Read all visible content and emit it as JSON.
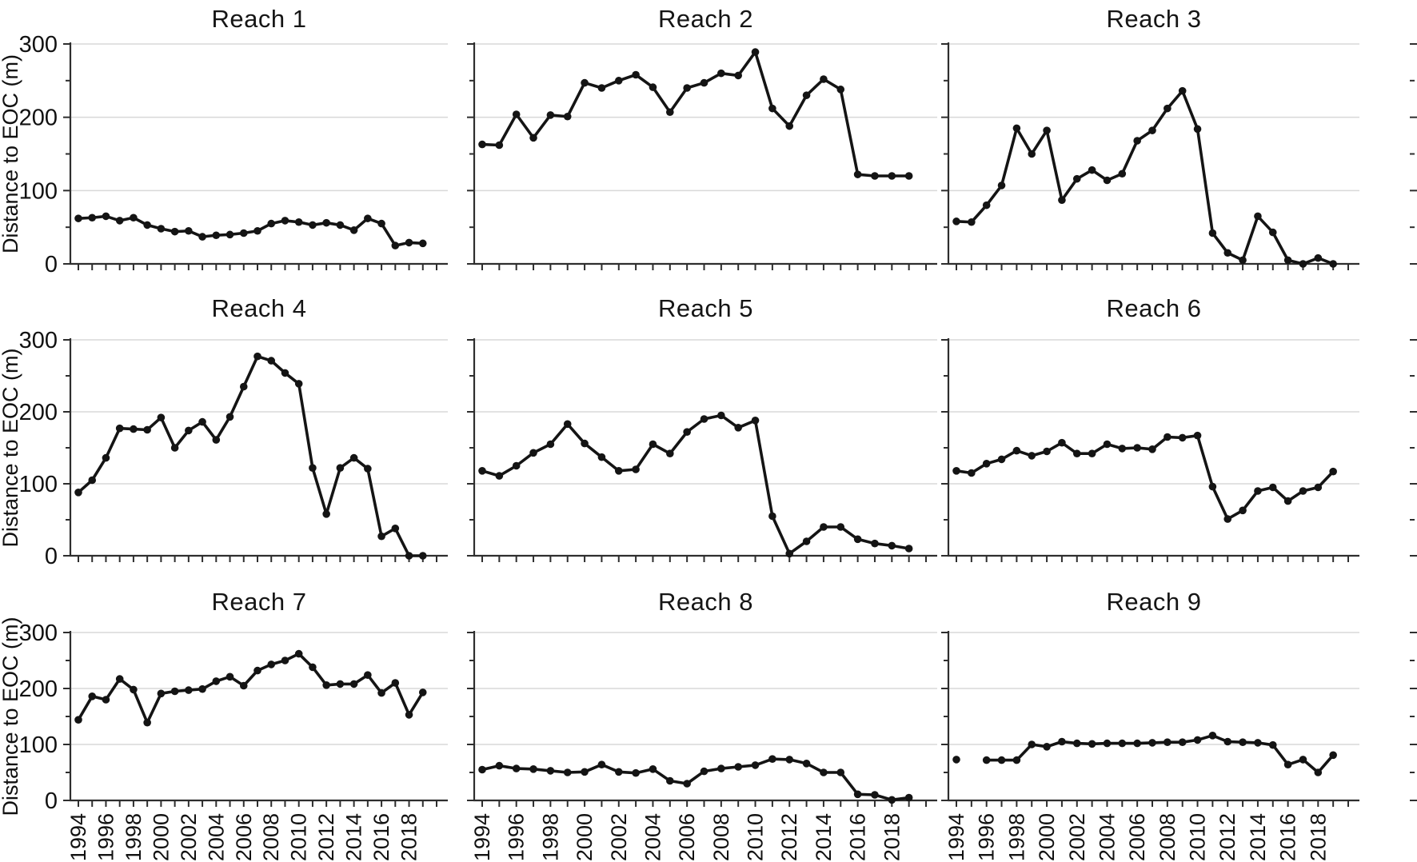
{
  "figure": {
    "ylabel": "Distance to EOC (m)",
    "background": "#ffffff",
    "line_color": "#141414",
    "marker_color": "#141414",
    "grid_color": "#d8d8d8",
    "axis_color": "#2e2e2e",
    "text_color": "#111111"
  },
  "axes": {
    "ylim": [
      0,
      300
    ],
    "yticks": [
      0,
      100,
      200,
      300
    ],
    "ytick_minor_step": 50,
    "xtick_years": [
      1994,
      1996,
      1998,
      2000,
      2002,
      2004,
      2006,
      2008,
      2010,
      2012,
      2014,
      2016,
      2018
    ],
    "x_axis_years": [
      1994,
      2020
    ],
    "grid": "horizontal-only",
    "legend": "none"
  },
  "years": [
    1994,
    1995,
    1996,
    1997,
    1998,
    1999,
    2000,
    2001,
    2002,
    2003,
    2004,
    2005,
    2006,
    2007,
    2008,
    2009,
    2010,
    2011,
    2012,
    2013,
    2014,
    2015,
    2016,
    2017,
    2018,
    2019
  ],
  "chart_data": [
    {
      "type": "line",
      "title": "Reach 1",
      "ylabel": "Distance to EOC (m)",
      "ylim": [
        0,
        300
      ],
      "values": [
        62,
        63,
        65,
        59,
        63,
        53,
        48,
        44,
        45,
        37,
        39,
        40,
        42,
        45,
        55,
        59,
        57,
        53,
        56,
        53,
        46,
        62,
        55,
        25,
        29,
        28
      ]
    },
    {
      "type": "line",
      "title": "Reach 2",
      "ylabel": "Distance to EOC (m)",
      "ylim": [
        0,
        300
      ],
      "values": [
        163,
        162,
        204,
        172,
        203,
        201,
        247,
        240,
        250,
        258,
        241,
        207,
        240,
        247,
        260,
        257,
        289,
        212,
        188,
        230,
        252,
        238,
        122,
        120,
        120,
        120
      ]
    },
    {
      "type": "line",
      "title": "Reach 3",
      "ylabel": "Distance to EOC (m)",
      "ylim": [
        0,
        300
      ],
      "values": [
        58,
        57,
        80,
        107,
        185,
        150,
        182,
        87,
        116,
        128,
        114,
        123,
        168,
        182,
        212,
        236,
        184,
        42,
        15,
        5,
        65,
        43,
        5,
        0,
        8,
        0
      ]
    },
    {
      "type": "line",
      "title": "Reach 4",
      "ylabel": "Distance to EOC (m)",
      "ylim": [
        0,
        300
      ],
      "values": [
        88,
        105,
        136,
        177,
        176,
        175,
        192,
        150,
        174,
        186,
        161,
        193,
        235,
        277,
        271,
        254,
        239,
        122,
        58,
        122,
        136,
        121,
        27,
        38,
        0,
        0
      ]
    },
    {
      "type": "line",
      "title": "Reach 5",
      "ylabel": "Distance to EOC (m)",
      "ylim": [
        0,
        300
      ],
      "values": [
        118,
        111,
        125,
        143,
        155,
        183,
        156,
        137,
        118,
        120,
        155,
        142,
        172,
        190,
        195,
        178,
        188,
        55,
        3,
        20,
        40,
        40,
        23,
        17,
        14,
        10
      ]
    },
    {
      "type": "line",
      "title": "Reach 6",
      "ylabel": "Distance to EOC (m)",
      "ylim": [
        0,
        300
      ],
      "values": [
        118,
        115,
        128,
        134,
        146,
        139,
        145,
        157,
        142,
        142,
        155,
        149,
        150,
        148,
        165,
        164,
        167,
        96,
        51,
        63,
        90,
        95,
        76,
        90,
        95,
        117
      ]
    },
    {
      "type": "line",
      "title": "Reach 7",
      "ylabel": "Distance to EOC (m)",
      "ylim": [
        0,
        300
      ],
      "values": [
        144,
        186,
        180,
        217,
        198,
        139,
        191,
        195,
        197,
        199,
        213,
        221,
        205,
        232,
        243,
        250,
        262,
        238,
        206,
        208,
        208,
        224,
        192,
        210,
        153,
        193
      ]
    },
    {
      "type": "line",
      "title": "Reach 8",
      "ylabel": "Distance to EOC (m)",
      "ylim": [
        0,
        300
      ],
      "values": [
        55,
        62,
        57,
        56,
        53,
        50,
        51,
        64,
        51,
        49,
        56,
        35,
        30,
        52,
        57,
        60,
        63,
        74,
        73,
        66,
        50,
        50,
        11,
        10,
        1,
        5
      ]
    },
    {
      "type": "line",
      "title": "Reach 9",
      "ylabel": "Distance to EOC (m)",
      "ylim": [
        0,
        300
      ],
      "values": [
        73,
        null,
        72,
        72,
        72,
        100,
        96,
        105,
        102,
        101,
        102,
        102,
        102,
        103,
        104,
        104,
        108,
        116,
        105,
        104,
        103,
        99,
        64,
        73,
        50,
        81
      ]
    }
  ]
}
